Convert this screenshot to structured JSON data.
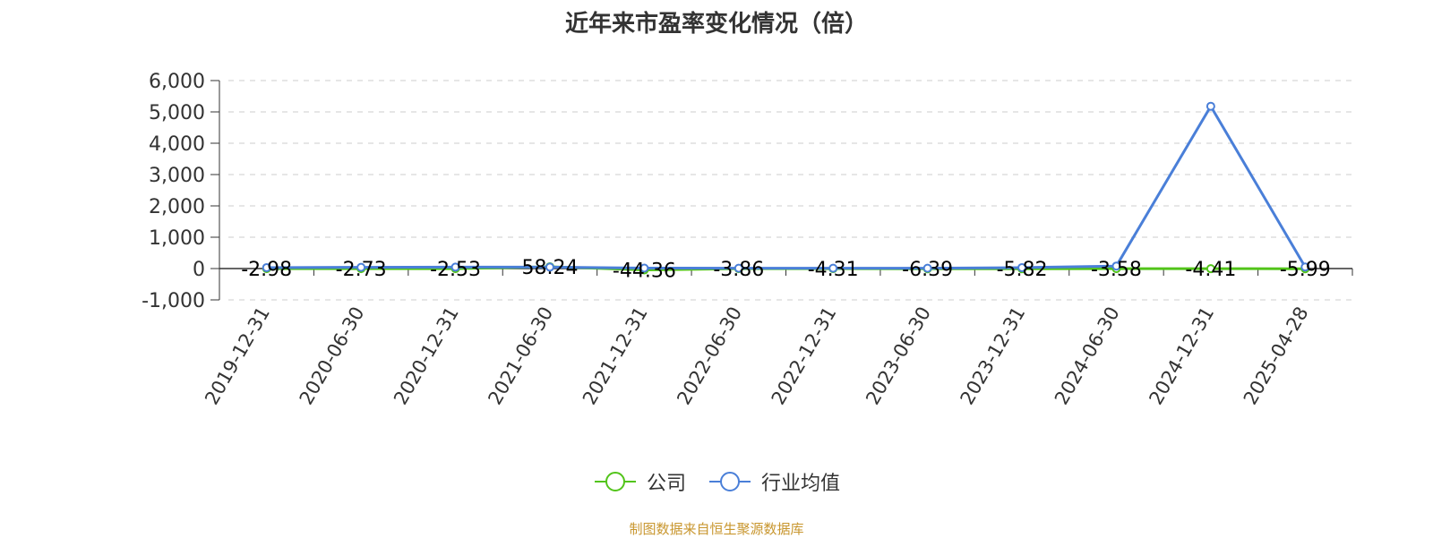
{
  "title": "近年来市盈率变化情况（倍）",
  "source": "制图数据来自恒生聚源数据库",
  "colors": {
    "company": "#52c41a",
    "industry": "#4a7fd8",
    "grid": "#cccccc",
    "axis": "#333333",
    "source": "#c8962e"
  },
  "chart_data": {
    "type": "line",
    "categories": [
      "2019-12-31",
      "2020-06-30",
      "2020-12-31",
      "2021-06-30",
      "2021-12-31",
      "2022-06-30",
      "2022-12-31",
      "2023-06-30",
      "2023-12-31",
      "2024-06-30",
      "2024-12-31",
      "2025-04-28"
    ],
    "yticks": [
      "6,000",
      "5,000",
      "4,000",
      "3,000",
      "2,000",
      "1,000",
      "0",
      "-1,000"
    ],
    "ylim": [
      -1000,
      6000
    ],
    "grid": true,
    "legend_position": "bottom-center",
    "series": [
      {
        "name": "公司",
        "values": [
          -2.98,
          -2.73,
          -2.53,
          58.24,
          -44.36,
          -3.86,
          -4.31,
          -6.39,
          -5.82,
          -3.58,
          -4.41,
          -5.99
        ],
        "labels": [
          "-2.98",
          "-2.73",
          "-2.53",
          "58.24",
          "-44.36",
          "-3.86",
          "-4.31",
          "-6.39",
          "-5.82",
          "-3.58",
          "-4.41",
          "-5.99"
        ]
      },
      {
        "name": "行业均值",
        "values": [
          30,
          40,
          45,
          45,
          15,
          10,
          10,
          10,
          30,
          80,
          5180,
          50
        ]
      }
    ]
  }
}
